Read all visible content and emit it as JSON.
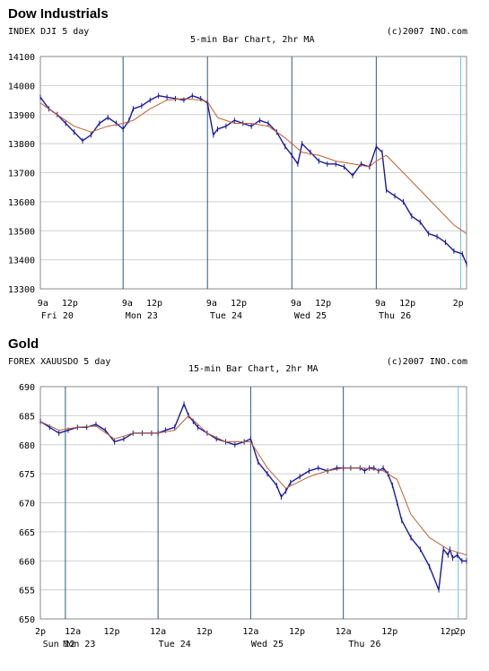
{
  "chart_data": [
    {
      "type": "line",
      "title": "Dow Industrials",
      "symbol_label": "INDEX DJI 5 day",
      "subtitle": "5-min Bar Chart, 2hr MA",
      "credit": "(c)2007 INO.com",
      "ylim": [
        13300,
        14100
      ],
      "yticks": [
        "14100",
        "14000",
        "13900",
        "13800",
        "13700",
        "13600",
        "13500",
        "13400",
        "13300"
      ],
      "xlim": [
        0,
        5.05
      ],
      "day_dividers": [
        0.98,
        1.98,
        2.98,
        3.98,
        4.98
      ],
      "xticks": [
        {
          "x": 0.03,
          "label": "9a"
        },
        {
          "x": 0.35,
          "label": "12p"
        },
        {
          "x": 1.03,
          "label": "9a"
        },
        {
          "x": 1.35,
          "label": "12p"
        },
        {
          "x": 2.03,
          "label": "9a"
        },
        {
          "x": 2.35,
          "label": "12p"
        },
        {
          "x": 3.03,
          "label": "9a"
        },
        {
          "x": 3.35,
          "label": "12p"
        },
        {
          "x": 4.03,
          "label": "9a"
        },
        {
          "x": 4.35,
          "label": "12p"
        },
        {
          "x": 4.95,
          "label": "2p"
        }
      ],
      "day_labels": [
        {
          "x": 0.2,
          "label": "Fri 20"
        },
        {
          "x": 1.2,
          "label": "Mon 23"
        },
        {
          "x": 2.2,
          "label": "Tue 24"
        },
        {
          "x": 3.2,
          "label": "Wed 25"
        },
        {
          "x": 4.2,
          "label": "Thu 26"
        }
      ],
      "series": [
        {
          "role": "price",
          "color": "#1a1aa0",
          "x": [
            0,
            0.1,
            0.2,
            0.3,
            0.4,
            0.5,
            0.6,
            0.7,
            0.8,
            0.9,
            0.98,
            1.05,
            1.1,
            1.2,
            1.3,
            1.4,
            1.5,
            1.6,
            1.7,
            1.8,
            1.9,
            1.98,
            2.05,
            2.1,
            2.2,
            2.3,
            2.4,
            2.5,
            2.6,
            2.7,
            2.8,
            2.9,
            2.98,
            3.05,
            3.1,
            3.2,
            3.3,
            3.4,
            3.5,
            3.6,
            3.7,
            3.8,
            3.9,
            3.98,
            4.05,
            4.1,
            4.2,
            4.3,
            4.4,
            4.5,
            4.6,
            4.7,
            4.8,
            4.9,
            5.0,
            5.05
          ],
          "y": [
            13960,
            13920,
            13900,
            13870,
            13840,
            13810,
            13830,
            13870,
            13890,
            13870,
            13850,
            13880,
            13920,
            13930,
            13950,
            13965,
            13960,
            13955,
            13950,
            13965,
            13955,
            13940,
            13830,
            13850,
            13860,
            13880,
            13870,
            13860,
            13880,
            13870,
            13840,
            13790,
            13760,
            13730,
            13800,
            13770,
            13740,
            13730,
            13730,
            13720,
            13690,
            13730,
            13720,
            13790,
            13770,
            13640,
            13620,
            13600,
            13550,
            13530,
            13490,
            13480,
            13460,
            13430,
            13420,
            13385
          ]
        },
        {
          "role": "ma",
          "color": "#c06030",
          "x": [
            0,
            0.2,
            0.4,
            0.6,
            0.8,
            0.98,
            1.1,
            1.3,
            1.5,
            1.7,
            1.9,
            1.98,
            2.1,
            2.3,
            2.5,
            2.7,
            2.9,
            2.98,
            3.1,
            3.3,
            3.5,
            3.7,
            3.9,
            3.98,
            4.1,
            4.3,
            4.5,
            4.7,
            4.9,
            5.05
          ],
          "y": [
            13940,
            13900,
            13860,
            13840,
            13860,
            13870,
            13880,
            13920,
            13950,
            13955,
            13950,
            13945,
            13890,
            13870,
            13870,
            13860,
            13820,
            13800,
            13770,
            13760,
            13740,
            13730,
            13720,
            13740,
            13760,
            13700,
            13640,
            13580,
            13520,
            13490
          ]
        }
      ]
    },
    {
      "type": "line",
      "title": "Gold",
      "symbol_label": "FOREX XAUUSDO 5 day",
      "subtitle": "15-min Bar Chart, 2hr MA",
      "credit": "(c)2007 INO.com",
      "ylim": [
        650,
        690
      ],
      "yticks": [
        "690",
        "685",
        "680",
        "675",
        "670",
        "665",
        "660",
        "655",
        "650"
      ],
      "xlim": [
        0,
        4.6
      ],
      "day_dividers": [
        0.27,
        1.27,
        2.27,
        3.27,
        4.51
      ],
      "xticks": [
        {
          "x": 0.0,
          "label": "2p"
        },
        {
          "x": 0.35,
          "label": "12a"
        },
        {
          "x": 0.77,
          "label": "12p"
        },
        {
          "x": 1.27,
          "label": "12a"
        },
        {
          "x": 1.77,
          "label": "12p"
        },
        {
          "x": 2.27,
          "label": "12a"
        },
        {
          "x": 2.77,
          "label": "12p"
        },
        {
          "x": 3.27,
          "label": "12a"
        },
        {
          "x": 3.77,
          "label": "12p"
        },
        {
          "x": 4.4,
          "label": "12p"
        },
        {
          "x": 4.53,
          "label": "2p"
        }
      ],
      "day_labels": [
        {
          "x": 0.2,
          "label": "Sun 22"
        },
        {
          "x": 0.42,
          "label": "Mon 23"
        },
        {
          "x": 1.45,
          "label": "Tue 24"
        },
        {
          "x": 2.45,
          "label": "Wed 25"
        },
        {
          "x": 3.5,
          "label": "Thu 26"
        }
      ],
      "series": [
        {
          "role": "price",
          "color": "#1a1aa0",
          "x": [
            0,
            0.1,
            0.2,
            0.3,
            0.4,
            0.5,
            0.6,
            0.7,
            0.8,
            0.9,
            1.0,
            1.1,
            1.2,
            1.27,
            1.35,
            1.45,
            1.55,
            1.6,
            1.65,
            1.7,
            1.8,
            1.9,
            2.0,
            2.1,
            2.2,
            2.27,
            2.35,
            2.45,
            2.55,
            2.6,
            2.65,
            2.7,
            2.8,
            2.9,
            3.0,
            3.1,
            3.2,
            3.27,
            3.35,
            3.45,
            3.5,
            3.55,
            3.6,
            3.65,
            3.7,
            3.75,
            3.8,
            3.85,
            3.9,
            4.0,
            4.1,
            4.2,
            4.3,
            4.35,
            4.4,
            4.42,
            4.45,
            4.5,
            4.55,
            4.6
          ],
          "y": [
            684,
            683,
            682,
            682.5,
            683,
            683,
            683.5,
            682.5,
            680.5,
            681,
            682,
            682,
            682,
            682,
            682.5,
            683,
            687,
            685,
            684,
            683,
            682,
            681,
            680.5,
            680,
            680.5,
            681,
            677,
            675,
            673,
            671,
            672,
            673.5,
            674.5,
            675.5,
            676,
            675.5,
            676,
            676,
            676,
            676,
            675.5,
            676,
            676,
            675.5,
            676,
            675,
            673,
            670,
            667,
            664,
            662,
            659,
            655,
            662,
            661,
            662,
            660.5,
            661,
            660,
            660
          ]
        },
        {
          "role": "ma",
          "color": "#c06030",
          "x": [
            0,
            0.2,
            0.4,
            0.6,
            0.8,
            1.0,
            1.27,
            1.45,
            1.6,
            1.8,
            2.0,
            2.27,
            2.45,
            2.65,
            2.9,
            3.1,
            3.27,
            3.5,
            3.7,
            3.85,
            4.0,
            4.2,
            4.4,
            4.6
          ],
          "y": [
            684,
            682.5,
            683,
            683.2,
            681,
            682,
            682,
            682.5,
            685,
            682,
            680.5,
            680.5,
            676,
            672.5,
            674.5,
            675.5,
            676,
            676,
            675.5,
            674,
            668,
            664,
            662,
            661
          ]
        }
      ]
    }
  ]
}
